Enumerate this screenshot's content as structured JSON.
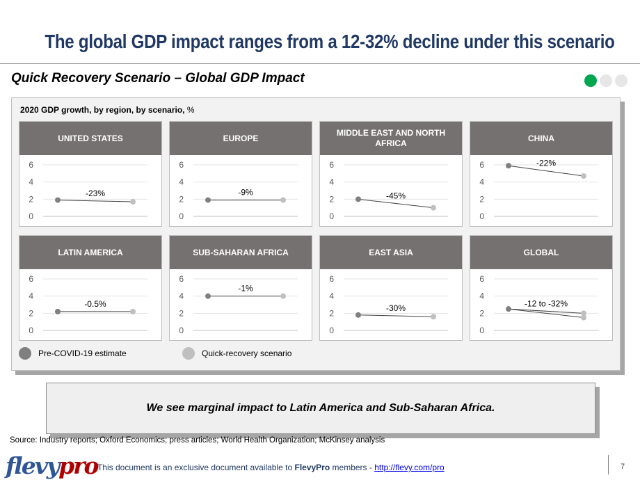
{
  "header": {
    "title": "The global GDP impact ranges from a 12-32% decline under this scenario",
    "subtitle": "Quick Recovery Scenario – Global GDP Impact"
  },
  "progress_dots": {
    "active_color": "#00a650",
    "inactive_color": "#e6e6e6",
    "active_index": 0,
    "count": 3
  },
  "panel": {
    "label_bold": "2020 GDP growth, by region, by scenario,",
    "label_unit": " %"
  },
  "colors": {
    "header_fill": "#767171",
    "pre_covid": "#7f7f7f",
    "quick_recovery": "#bfbfbf",
    "title": "#1f3864"
  },
  "legend": {
    "pre_covid": "Pre-COVID-19 estimate",
    "quick_recovery": "Quick-recovery scenario"
  },
  "chart_data": [
    {
      "type": "line",
      "title": "UNITED STATES",
      "y_ticks": [
        "6",
        "4",
        "2",
        "0"
      ],
      "ylim": [
        0,
        6
      ],
      "series": [
        {
          "name": "Pre-COVID-19 estimate",
          "values": [
            1.9
          ]
        },
        {
          "name": "Quick-recovery scenario",
          "values": [
            1.7
          ]
        }
      ],
      "annotation": "-23%"
    },
    {
      "type": "line",
      "title": "EUROPE",
      "y_ticks": [
        "6",
        "4",
        "2",
        "0"
      ],
      "ylim": [
        0,
        6
      ],
      "series": [
        {
          "name": "Pre-COVID-19 estimate",
          "values": [
            1.9
          ]
        },
        {
          "name": "Quick-recovery scenario",
          "values": [
            1.9
          ]
        }
      ],
      "annotation": "-9%"
    },
    {
      "type": "line",
      "title": "MIDDLE EAST AND NORTH AFRICA",
      "y_ticks": [
        "6",
        "4",
        "2",
        "0"
      ],
      "ylim": [
        0,
        6
      ],
      "series": [
        {
          "name": "Pre-COVID-19 estimate",
          "values": [
            2.0
          ]
        },
        {
          "name": "Quick-recovery scenario",
          "values": [
            1.0
          ]
        }
      ],
      "annotation": "-45%"
    },
    {
      "type": "line",
      "title": "CHINA",
      "y_ticks": [
        "6",
        "4",
        "2",
        "0"
      ],
      "ylim": [
        0,
        6
      ],
      "series": [
        {
          "name": "Pre-COVID-19 estimate",
          "values": [
            5.9
          ]
        },
        {
          "name": "Quick-recovery scenario",
          "values": [
            4.7
          ]
        }
      ],
      "annotation": "-22%"
    },
    {
      "type": "line",
      "title": "LATIN AMERICA",
      "y_ticks": [
        "6",
        "4",
        "2",
        "0"
      ],
      "ylim": [
        0,
        6
      ],
      "series": [
        {
          "name": "Pre-COVID-19 estimate",
          "values": [
            2.2
          ]
        },
        {
          "name": "Quick-recovery scenario",
          "values": [
            2.2
          ]
        }
      ],
      "annotation": "-0.5%"
    },
    {
      "type": "line",
      "title": "SUB-SAHARAN AFRICA",
      "y_ticks": [
        "6",
        "4",
        "2",
        "0"
      ],
      "ylim": [
        0,
        6
      ],
      "series": [
        {
          "name": "Pre-COVID-19 estimate",
          "values": [
            4.0
          ]
        },
        {
          "name": "Quick-recovery scenario",
          "values": [
            4.0
          ]
        }
      ],
      "annotation": "-1%"
    },
    {
      "type": "line",
      "title": "EAST ASIA",
      "y_ticks": [
        "6",
        "4",
        "2",
        "0"
      ],
      "ylim": [
        0,
        6
      ],
      "series": [
        {
          "name": "Pre-COVID-19 estimate",
          "values": [
            1.8
          ]
        },
        {
          "name": "Quick-recovery scenario",
          "values": [
            1.6
          ]
        }
      ],
      "annotation": "-30%"
    },
    {
      "type": "line",
      "title": "GLOBAL",
      "y_ticks": [
        "6",
        "4",
        "2",
        "0"
      ],
      "ylim": [
        0,
        6
      ],
      "series": [
        {
          "name": "Pre-COVID-19 estimate",
          "values": [
            2.5
          ]
        },
        {
          "name": "Quick-recovery scenario",
          "values": [
            2.0,
            1.5
          ]
        }
      ],
      "annotation": "-12 to -32%"
    }
  ],
  "callout": "We see marginal impact to Latin America and Sub-Saharan Africa.",
  "source": "Source: Industry reports; Oxford Economics; press articles; World Health Organization; McKinsey analysis",
  "footer": {
    "logo_main": "flevy",
    "logo_accent": "pro",
    "text_before": "This document is an exclusive document available to ",
    "text_brand": "FlevyPro",
    "text_middle": " members - ",
    "link": "http://flevy.com/pro",
    "page_number": "7"
  }
}
